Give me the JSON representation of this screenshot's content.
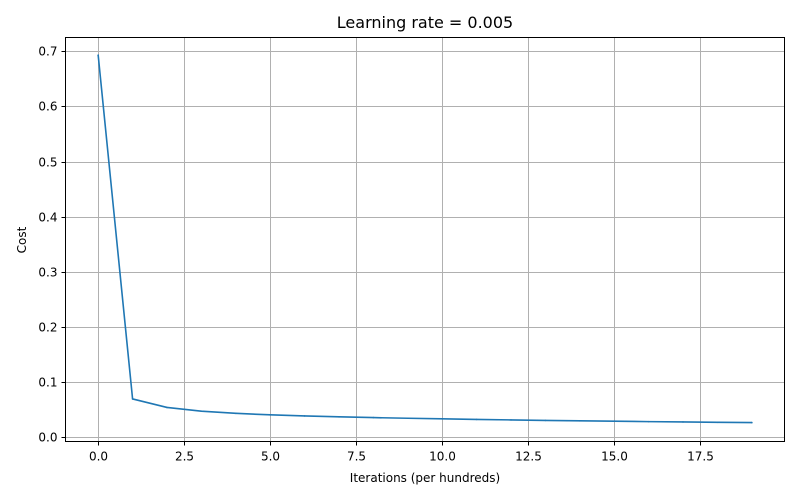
{
  "chart_data": {
    "type": "line",
    "title": "Learning rate = 0.005",
    "xlabel": "Iterations (per hundreds)",
    "ylabel": "Cost",
    "xlim": [
      -0.95,
      19.95
    ],
    "ylim": [
      -0.0083,
      0.7252
    ],
    "x_ticks": [
      0.0,
      2.5,
      5.0,
      7.5,
      10.0,
      12.5,
      15.0,
      17.5
    ],
    "x_tick_labels": [
      "0.0",
      "2.5",
      "5.0",
      "7.5",
      "10.0",
      "12.5",
      "15.0",
      "17.5"
    ],
    "y_ticks": [
      0.0,
      0.1,
      0.2,
      0.3,
      0.4,
      0.5,
      0.6,
      0.7
    ],
    "y_tick_labels": [
      "0.0",
      "0.1",
      "0.2",
      "0.3",
      "0.4",
      "0.5",
      "0.6",
      "0.7"
    ],
    "grid": true,
    "series": [
      {
        "color": "#1f77b4",
        "x": [
          0,
          1,
          2,
          3,
          4,
          5,
          6,
          7,
          8,
          9,
          10,
          11,
          12,
          13,
          14,
          15,
          16,
          17,
          18,
          19
        ],
        "values": [
          0.6931,
          0.069,
          0.0535,
          0.0467,
          0.0428,
          0.0401,
          0.0381,
          0.0365,
          0.0351,
          0.0339,
          0.0328,
          0.0318,
          0.0309,
          0.03,
          0.0293,
          0.0285,
          0.0278,
          0.0272,
          0.0266,
          0.026
        ]
      }
    ]
  }
}
